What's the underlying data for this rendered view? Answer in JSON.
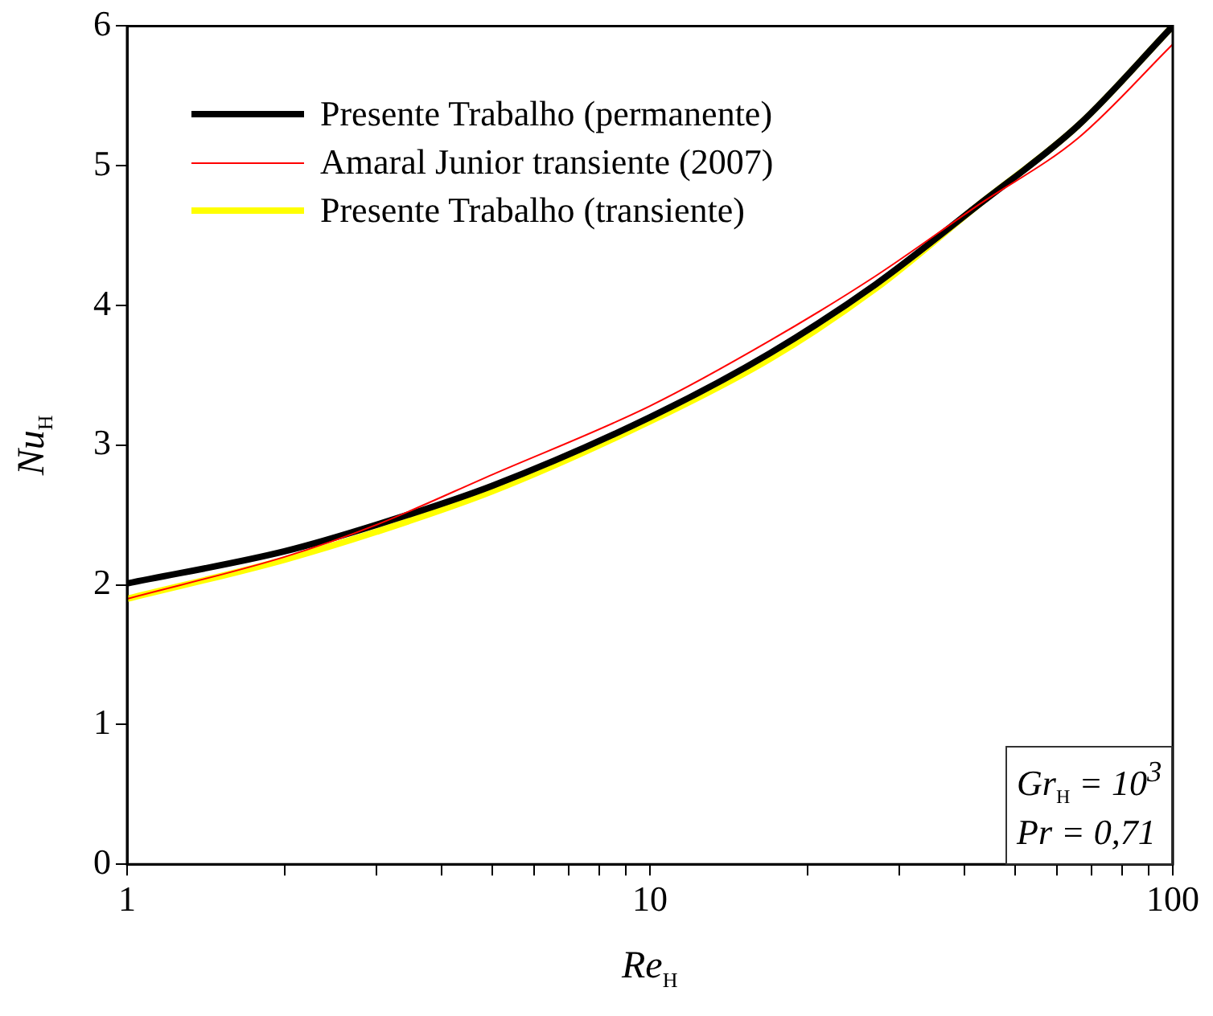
{
  "chart_data": {
    "type": "line",
    "xlabel": "Re$_{H}$",
    "ylabel": "Nu$_{H}$",
    "log": "x",
    "xlim": [
      1,
      100
    ],
    "ylim": [
      0,
      6
    ],
    "xticks": [
      1,
      {
        "value": 2,
        "label": null
      },
      {
        "value": 3,
        "label": null
      },
      {
        "value": 4,
        "label": null
      },
      {
        "value": 5,
        "label": null
      },
      {
        "value": 6,
        "label": null
      },
      {
        "value": 7,
        "label": null
      },
      {
        "value": 8,
        "label": null
      },
      {
        "value": 9,
        "label": null
      },
      10,
      {
        "value": 20,
        "label": null
      },
      {
        "value": 30,
        "label": null
      },
      {
        "value": 40,
        "label": null
      },
      {
        "value": 50,
        "label": null
      },
      {
        "value": 60,
        "label": null
      },
      {
        "value": 70,
        "label": null
      },
      {
        "value": 80,
        "label": null
      },
      {
        "value": 90,
        "label": null
      },
      100
    ],
    "yticks": [
      0,
      1,
      2,
      3,
      4,
      5,
      6
    ],
    "grid": false,
    "legend": "top left",
    "marker": "none",
    "line_style": "solid",
    "annotations": [
      "Gr$_{H}$ = 10$^{3}$",
      "Pr = 0,71"
    ],
    "series": [
      {
        "name": "Presente Trabalho (permanente)",
        "color": "#000000",
        "x": [
          1,
          2,
          3,
          5,
          10,
          17,
          27,
          42.5,
          66,
          100
        ],
        "values": [
          2.01,
          2.24,
          2.43,
          2.71,
          3.2,
          3.66,
          4.15,
          4.72,
          5.29,
          6.0
        ]
      },
      {
        "name": "Amaral Junior transiente (2007)",
        "color": "#ff0000",
        "x": [
          1,
          2,
          3,
          5,
          10,
          17,
          27,
          42.5,
          66,
          100
        ],
        "values": [
          1.9,
          2.2,
          2.43,
          2.79,
          3.28,
          3.75,
          4.21,
          4.72,
          5.2,
          5.87
        ]
      },
      {
        "name": "Presente Trabalho (transiente)",
        "color": "#ffff00",
        "x": [
          1,
          2,
          3,
          5,
          10,
          17,
          27,
          42.5,
          66,
          100
        ],
        "values": [
          1.9,
          2.18,
          2.38,
          2.67,
          3.17,
          3.62,
          4.12,
          4.72,
          5.29,
          6.0
        ]
      }
    ]
  }
}
